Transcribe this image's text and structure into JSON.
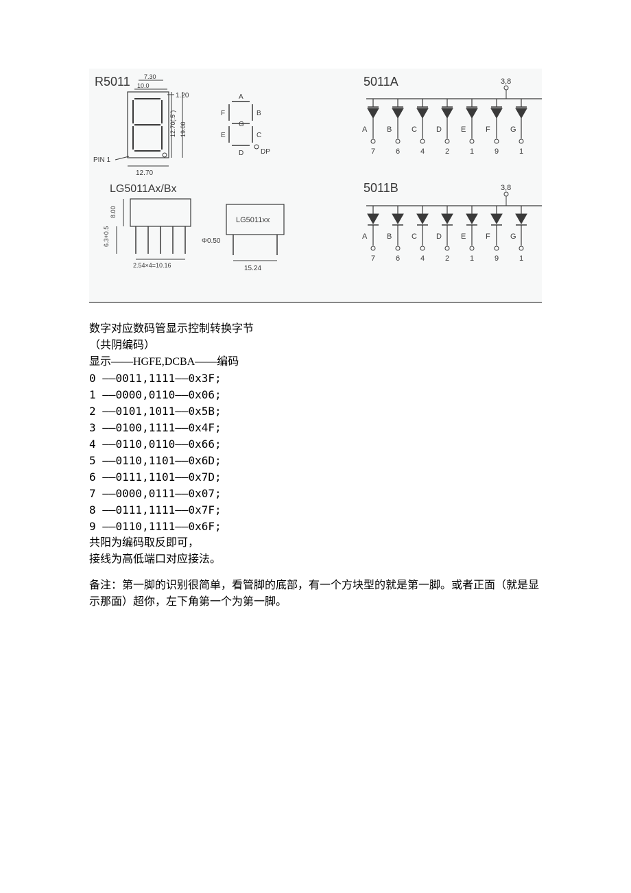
{
  "diagram": {
    "bg": "#f7f8f8",
    "stroke": "#3a3a3a",
    "text_color": "#3a3a3a",
    "font": "Arial, sans-serif",
    "labels": {
      "R5011": "R5011",
      "LG5011AxBx": "LG5011Ax/Bx",
      "A5011": "5011A",
      "B5011": "5011B",
      "pin1": "PIN 1",
      "lgxx": "LG5011xx",
      "dp": "DP"
    },
    "dims": {
      "d730": "7.30",
      "d100": "10.0",
      "d120": "1.20",
      "d1270_5": "12.70(.5\")",
      "d1900": "19.00",
      "d1270": "12.70",
      "d800": "8.00",
      "d63_05": "6.3+0.5",
      "d050": "Φ0.50",
      "d1524": "15.24",
      "d254": "2.54×4=10.16"
    },
    "segments": [
      "A",
      "B",
      "C",
      "D",
      "E",
      "F",
      "G"
    ],
    "common_pin": "3,8",
    "pins_row": [
      "7",
      "6",
      "4",
      "2",
      "1",
      "9",
      "1"
    ]
  },
  "text": {
    "title": "数字对应数码管显示控制转换字节",
    "subtitle": "（共阴编码）",
    "header_line": "显示――HGFE,DCBA――编码",
    "rows": [
      "0 ――0011,1111――0x3F;",
      "1 ――0000,0110――0x06;",
      "2 ――0101,1011――0x5B;",
      "3 ――0100,1111――0x4F;",
      "4 ――0110,0110――0x66;",
      "5 ――0110,1101――0x6D;",
      "6 ――0111,1101――0x7D;",
      "7 ――0000,0111――0x07;",
      "8 ――0111,1111――0x7F;",
      "9 ――0110,1111――0x6F;"
    ],
    "line_a": "共阳为编码取反即可，",
    "line_b": "接线为高低端口对应接法。",
    "note": "备注：第一脚的识别很简单，看管脚的底部，有一个方块型的就是第一脚。或者正面（就是显示那面）超你，左下角第一个为第一脚。"
  }
}
